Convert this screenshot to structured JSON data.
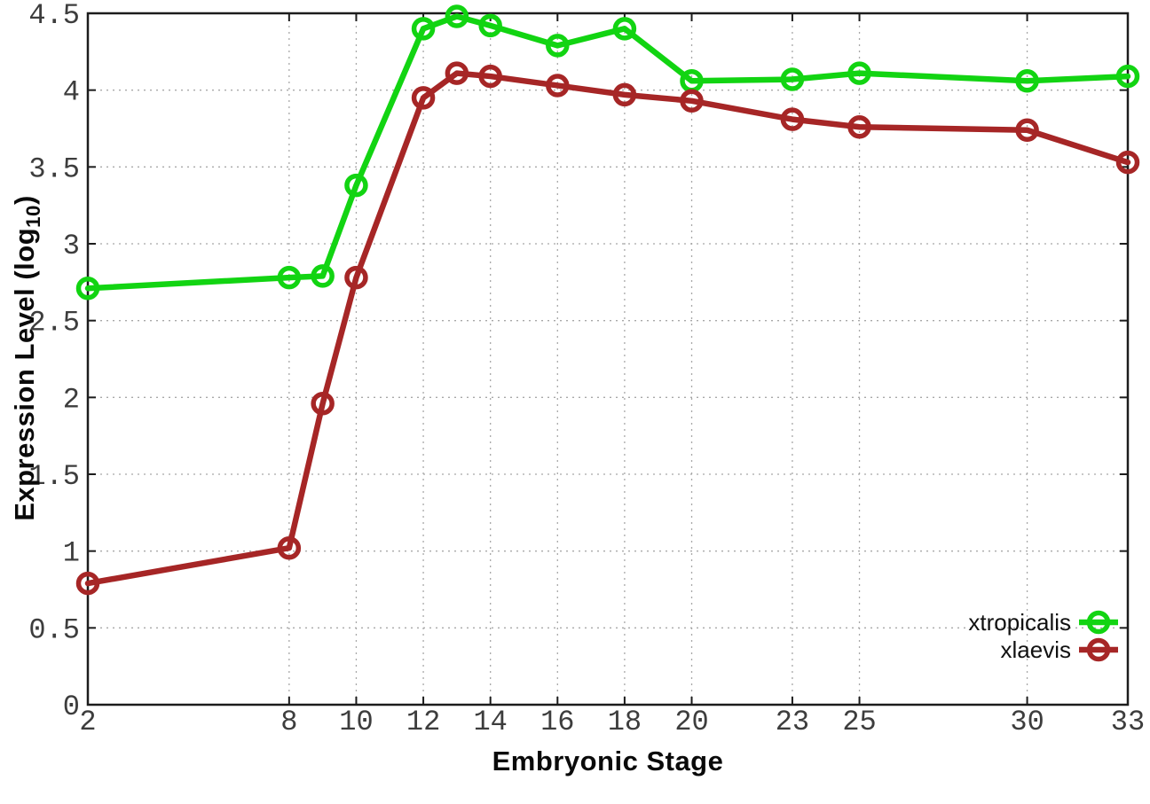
{
  "chart_data": {
    "type": "line",
    "title": "",
    "xlabel": "Embryonic Stage",
    "ylabel": "Expression Level (log10)",
    "ylabel_parts": {
      "pre": "Expression Level (log",
      "sub": "10",
      "post": ")"
    },
    "x": [
      2,
      8,
      9,
      10,
      12,
      13,
      14,
      16,
      18,
      20,
      23,
      25,
      30,
      33
    ],
    "xticks": [
      "2",
      "8",
      "10",
      "12",
      "14",
      "16",
      "18",
      "20",
      "23",
      "25",
      "30",
      "33"
    ],
    "xtick_values": [
      2,
      8,
      10,
      12,
      14,
      16,
      18,
      20,
      23,
      25,
      30,
      33
    ],
    "yticks": [
      "0",
      "0.5",
      "1",
      "1.5",
      "2",
      "2.5",
      "3",
      "3.5",
      "4",
      "4.5"
    ],
    "ytick_values": [
      0,
      0.5,
      1,
      1.5,
      2,
      2.5,
      3,
      3.5,
      4,
      4.5
    ],
    "xlim": [
      2,
      33
    ],
    "ylim": [
      0,
      4.5
    ],
    "grid": true,
    "legend_position": "inside-bottom-right",
    "series": [
      {
        "name": "xtropicalis",
        "color": "#12d412",
        "values": [
          2.71,
          2.78,
          2.79,
          3.38,
          4.4,
          4.48,
          4.42,
          4.29,
          4.4,
          4.06,
          4.07,
          4.11,
          4.06,
          4.09
        ]
      },
      {
        "name": "xlaevis",
        "color": "#a62626",
        "values": [
          0.79,
          1.02,
          1.96,
          2.78,
          3.95,
          4.11,
          4.09,
          4.03,
          3.97,
          3.93,
          3.81,
          3.76,
          3.74,
          3.53
        ]
      }
    ],
    "colors": {
      "background": "#ffffff",
      "axis_border": "#1c1c1c",
      "tick_text": "#3d3d3d",
      "grid": "#a8a8a8",
      "title_text": "#0a0a0a"
    }
  }
}
